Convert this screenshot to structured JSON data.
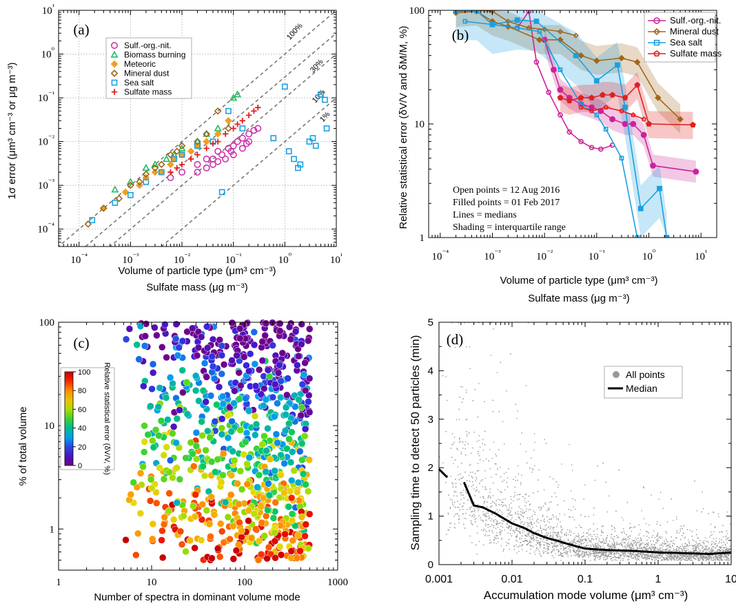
{
  "chart_data": [
    {
      "panel_label": "(a)",
      "type": "scatter",
      "xlabel": "Volume of particle type (μm³ cm⁻³)",
      "xlabel2": "Sulfate mass (μg m⁻³)",
      "ylabel": "1σ error (μm³ cm⁻³ or μg m⁻³)",
      "xscale": "log",
      "yscale": "log",
      "xlim": [
        4e-05,
        10
      ],
      "ylim": [
        4e-05,
        10
      ],
      "x_tick_labels": [
        "10⁻⁴",
        "10⁻³",
        "10⁻²",
        "10⁻¹",
        "10⁰",
        "10¹"
      ],
      "y_tick_labels": [
        "10⁻⁴",
        "10⁻³",
        "10⁻²",
        "10⁻¹",
        "10⁰",
        "10¹"
      ],
      "grid": true,
      "legend_position": "top-left",
      "reference_lines": [
        {
          "label": "100%",
          "ratio": 1.0
        },
        {
          "label": "30%",
          "ratio": 0.3
        },
        {
          "label": "10%",
          "ratio": 0.1
        },
        {
          "label": "1%",
          "ratio": 0.01
        }
      ],
      "series": [
        {
          "name": "Sulf.-org.-nit.",
          "color": "#cc33aa",
          "marker": "circle-open",
          "points": [
            [
              0.02,
              0.003
            ],
            [
              0.03,
              0.004
            ],
            [
              0.04,
              0.004
            ],
            [
              0.05,
              0.006
            ],
            [
              0.06,
              0.005
            ],
            [
              0.08,
              0.007
            ],
            [
              0.1,
              0.008
            ],
            [
              0.12,
              0.01
            ],
            [
              0.15,
              0.012
            ],
            [
              0.2,
              0.015
            ],
            [
              0.25,
              0.018
            ],
            [
              0.3,
              0.02
            ],
            [
              0.02,
              0.002
            ],
            [
              0.04,
              0.003
            ],
            [
              0.07,
              0.004
            ],
            [
              0.1,
              0.005
            ],
            [
              0.15,
              0.007
            ],
            [
              0.2,
              0.01
            ],
            [
              0.03,
              0.0025
            ],
            [
              0.05,
              0.0035
            ],
            [
              0.006,
              0.0015
            ],
            [
              0.01,
              0.002
            ],
            [
              0.09,
              0.006
            ],
            [
              0.18,
              0.009
            ]
          ]
        },
        {
          "name": "Biomass burning",
          "color": "#22bb66",
          "marker": "triangle-open",
          "points": [
            [
              0.0005,
              0.0008
            ],
            [
              0.001,
              0.0012
            ],
            [
              0.002,
              0.0025
            ],
            [
              0.005,
              0.004
            ],
            [
              0.01,
              0.007
            ],
            [
              0.02,
              0.01
            ],
            [
              0.05,
              0.02
            ],
            [
              0.1,
              0.1
            ],
            [
              0.12,
              0.12
            ],
            [
              0.003,
              0.003
            ],
            [
              0.03,
              0.015
            ],
            [
              0.007,
              0.005
            ]
          ]
        },
        {
          "name": "Meteoric",
          "color": "#f0a020",
          "marker": "diamond-filled",
          "points": [
            [
              0.0003,
              0.0003
            ],
            [
              0.0008,
              0.0007
            ],
            [
              0.002,
              0.0015
            ],
            [
              0.004,
              0.002
            ],
            [
              0.006,
              0.003
            ],
            [
              0.01,
              0.005
            ],
            [
              0.015,
              0.006
            ],
            [
              0.02,
              0.008
            ],
            [
              0.03,
              0.01
            ],
            [
              0.05,
              0.015
            ],
            [
              0.08,
              0.03
            ],
            [
              0.0015,
              0.001
            ],
            [
              0.003,
              0.002
            ],
            [
              0.007,
              0.004
            ]
          ]
        },
        {
          "name": "Mineral dust",
          "color": "#a0661a",
          "marker": "diamond-open",
          "points": [
            [
              0.00015,
              0.00013
            ],
            [
              0.0003,
              0.0003
            ],
            [
              0.0006,
              0.0005
            ],
            [
              0.001,
              0.001
            ],
            [
              0.002,
              0.0018
            ],
            [
              0.004,
              0.003
            ],
            [
              0.006,
              0.005
            ],
            [
              0.01,
              0.008
            ],
            [
              0.02,
              0.01
            ],
            [
              0.03,
              0.015
            ],
            [
              0.05,
              0.05
            ],
            [
              0.08,
              0.02
            ],
            [
              0.0015,
              0.0012
            ],
            [
              0.003,
              0.0025
            ],
            [
              0.008,
              0.006
            ]
          ]
        },
        {
          "name": "Sea salt",
          "color": "#1aa0e0",
          "marker": "square-open",
          "points": [
            [
              0.00018,
              0.00016
            ],
            [
              0.0005,
              0.0004
            ],
            [
              0.001,
              0.0006
            ],
            [
              0.002,
              0.0012
            ],
            [
              0.004,
              0.002
            ],
            [
              0.007,
              0.004
            ],
            [
              0.01,
              0.005
            ],
            [
              0.02,
              0.008
            ],
            [
              0.04,
              0.01
            ],
            [
              0.08,
              0.05
            ],
            [
              0.15,
              0.02
            ],
            [
              0.06,
              0.0007
            ],
            [
              1.0,
              0.18
            ],
            [
              0.6,
              0.012
            ],
            [
              1.2,
              0.006
            ],
            [
              1.5,
              0.004
            ],
            [
              2.0,
              0.003
            ],
            [
              3.0,
              0.01
            ],
            [
              4.0,
              0.008
            ],
            [
              5.0,
              0.12
            ],
            [
              6.0,
              0.09
            ],
            [
              6.5,
              0.02
            ],
            [
              1.8,
              0.0025
            ],
            [
              3.5,
              0.012
            ]
          ]
        },
        {
          "name": "Sulfate mass",
          "color": "#e02020",
          "marker": "plus",
          "points": [
            [
              0.01,
              0.003
            ],
            [
              0.015,
              0.004
            ],
            [
              0.02,
              0.005
            ],
            [
              0.03,
              0.007
            ],
            [
              0.05,
              0.01
            ],
            [
              0.07,
              0.015
            ],
            [
              0.1,
              0.02
            ],
            [
              0.15,
              0.03
            ],
            [
              0.2,
              0.04
            ],
            [
              0.25,
              0.05
            ],
            [
              0.3,
              0.06
            ],
            [
              0.008,
              0.0025
            ],
            [
              0.04,
              0.009
            ],
            [
              0.12,
              0.025
            ],
            [
              0.006,
              0.002
            ]
          ]
        }
      ]
    },
    {
      "panel_label": "(b)",
      "type": "line",
      "xlabel": "Volume of particle type (μm³ cm⁻³)",
      "xlabel2": "Sulfate mass (μg m⁻³)",
      "ylabel": "Relative statistical error (δV/V and δM/M, %)",
      "xscale": "log",
      "yscale": "log",
      "xlim": [
        6e-05,
        20
      ],
      "ylim": [
        1,
        100
      ],
      "x_tick_labels": [
        "10⁻⁴",
        "10⁻³",
        "10⁻²",
        "10⁻¹",
        "10⁰",
        "10¹"
      ],
      "y_tick_labels": [
        "1",
        "10",
        "100"
      ],
      "legend_position": "top-right",
      "annotations": [
        "Open points = 12 Aug 2016",
        "Filled points = 01 Feb 2017",
        "Lines = medians",
        "Shading = interquartile range"
      ],
      "series": [
        {
          "name": "Sulf.-org.-nit.",
          "color": "#cc2299",
          "marker": "circle",
          "open_points": [
            [
              0.003,
              70
            ],
            [
              0.005,
              98
            ],
            [
              0.007,
              35
            ],
            [
              0.012,
              19
            ],
            [
              0.02,
              12
            ],
            [
              0.03,
              8.5
            ],
            [
              0.05,
              7
            ],
            [
              0.08,
              6.2
            ],
            [
              0.12,
              6
            ],
            [
              0.2,
              6.5
            ]
          ],
          "filled_points": [
            [
              0.01,
              55
            ],
            [
              0.015,
              30
            ],
            [
              0.02,
              20
            ],
            [
              0.03,
              17
            ],
            [
              0.05,
              15
            ],
            [
              0.08,
              14
            ],
            [
              0.12,
              13
            ],
            [
              0.2,
              11
            ],
            [
              0.35,
              10
            ],
            [
              0.5,
              10
            ],
            [
              0.8,
              8
            ],
            [
              1.2,
              4.3
            ],
            [
              8,
              3.8
            ]
          ]
        },
        {
          "name": "Mineral dust",
          "color": "#a0661a",
          "marker": "diamond",
          "open_points": [
            [
              0.0002,
              98
            ],
            [
              0.0005,
              100
            ],
            [
              0.001,
              98
            ],
            [
              0.002,
              80
            ],
            [
              0.005,
              70
            ],
            [
              0.01,
              68
            ],
            [
              0.02,
              65
            ],
            [
              0.04,
              60
            ]
          ],
          "filled_points": [
            [
              0.0002,
              95
            ],
            [
              0.0005,
              98
            ],
            [
              0.001,
              80
            ],
            [
              0.002,
              72
            ],
            [
              0.008,
              55
            ],
            [
              0.02,
              55
            ],
            [
              0.05,
              40
            ],
            [
              0.1,
              36
            ],
            [
              0.3,
              38
            ],
            [
              0.6,
              35
            ],
            [
              1.5,
              17
            ],
            [
              4,
              11
            ]
          ]
        },
        {
          "name": "Sea salt",
          "color": "#1aa0e0",
          "marker": "square",
          "open_points": [
            [
              0.0003,
              80
            ],
            [
              0.001,
              75
            ],
            [
              0.003,
              70
            ],
            [
              0.008,
              65
            ],
            [
              0.02,
              30
            ],
            [
              0.05,
              15
            ],
            [
              0.1,
              12
            ],
            [
              0.15,
              9
            ],
            [
              0.3,
              5
            ],
            [
              0.6,
              1.0
            ]
          ],
          "filled_points": [
            [
              0.0002,
              100
            ],
            [
              0.0005,
              99
            ],
            [
              0.001,
              75
            ],
            [
              0.003,
              82
            ],
            [
              0.007,
              80
            ],
            [
              0.04,
              40
            ],
            [
              0.1,
              24
            ],
            [
              0.25,
              33
            ],
            [
              0.35,
              14
            ],
            [
              0.7,
              1.8
            ],
            [
              1.6,
              2.7
            ],
            [
              2.2,
              1.0
            ]
          ]
        },
        {
          "name": "Sulfate mass",
          "color": "#e02020",
          "marker": "pentagon",
          "open_points": [
            [
              0.05,
              14
            ],
            [
              0.08,
              13
            ],
            [
              0.15,
              14
            ],
            [
              0.3,
              13
            ],
            [
              0.5,
              12
            ],
            [
              0.8,
              11
            ]
          ],
          "filled_points": [
            [
              0.02,
              17
            ],
            [
              0.03,
              16
            ],
            [
              0.05,
              17
            ],
            [
              0.08,
              17
            ],
            [
              0.13,
              18
            ],
            [
              0.2,
              18
            ],
            [
              0.35,
              17
            ],
            [
              0.6,
              22
            ],
            [
              1.0,
              10
            ],
            [
              7,
              9.8
            ]
          ]
        }
      ]
    },
    {
      "panel_label": "(c)",
      "type": "scatter",
      "xlabel": "Number of spectra in dominant volume mode",
      "ylabel": "% of total volume",
      "xscale": "log",
      "yscale": "log",
      "xlim": [
        1,
        1000
      ],
      "ylim": [
        0.4,
        100
      ],
      "x_tick_labels": [
        "1",
        "10",
        "100",
        "1000"
      ],
      "y_tick_labels": [
        "1",
        "10",
        "100"
      ],
      "colorbar": {
        "label": "Relative statistical error (δV/V, %)",
        "range": [
          0,
          100
        ],
        "tick_labels": [
          "0",
          "20",
          "40",
          "60",
          "80",
          "100"
        ],
        "colormap": "rainbow (violet=0 → red=100)"
      },
      "generator_note": "dense cloud; low error at high % volume and many spectra, high error at low % volume"
    },
    {
      "panel_label": "(d)",
      "type": "scatter",
      "xlabel": "Accumulation mode volume (μm³ cm⁻³)",
      "ylabel": "Sampling time to detect 50 particles (min)",
      "xscale": "log",
      "yscale": "linear",
      "xlim": [
        0.001,
        10
      ],
      "ylim": [
        0,
        5
      ],
      "x_tick_labels": [
        "0.001",
        "0.01",
        "0.1",
        "1",
        "10"
      ],
      "y_tick_labels": [
        "0",
        "1",
        "2",
        "3",
        "4",
        "5"
      ],
      "legend_position": "upper-right-middle",
      "series": [
        {
          "name": "All points",
          "color": "#999999",
          "marker": "dot"
        },
        {
          "name": "Median",
          "color": "#000000",
          "marker": "line",
          "points": [
            [
              0.001,
              1.97
            ],
            [
              0.0013,
              1.8
            ],
            [
              0.0022,
              1.7
            ],
            [
              0.003,
              1.22
            ],
            [
              0.004,
              1.18
            ],
            [
              0.006,
              1.05
            ],
            [
              0.01,
              0.85
            ],
            [
              0.015,
              0.75
            ],
            [
              0.02,
              0.65
            ],
            [
              0.03,
              0.55
            ],
            [
              0.04,
              0.5
            ],
            [
              0.06,
              0.42
            ],
            [
              0.1,
              0.33
            ],
            [
              0.2,
              0.3
            ],
            [
              0.5,
              0.28
            ],
            [
              1,
              0.25
            ],
            [
              2,
              0.24
            ],
            [
              5,
              0.22
            ],
            [
              10,
              0.25
            ]
          ]
        }
      ]
    }
  ]
}
